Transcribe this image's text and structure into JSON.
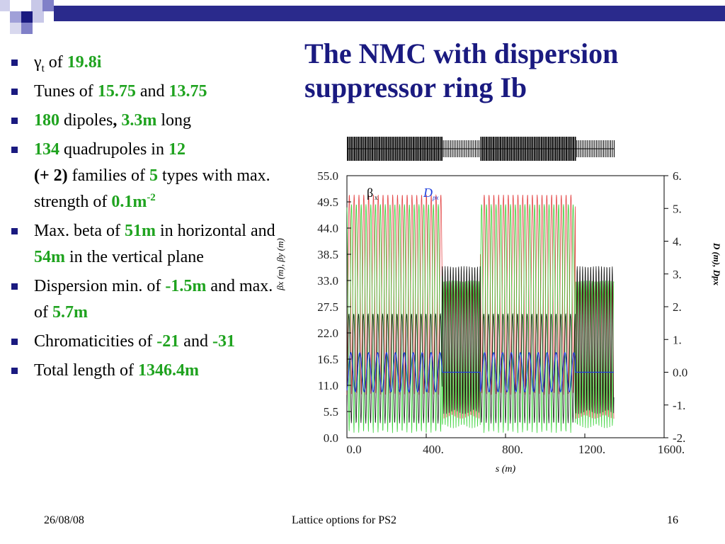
{
  "slide": {
    "title": "The NMC with dispersion suppressor ring Ib",
    "bullets": {
      "gamma": {
        "symbol": "γ",
        "sub": "t",
        "of": " of ",
        "value": "19.8i"
      },
      "tunes": {
        "prefix": "Tunes of ",
        "v1": "15.75",
        "and": " and ",
        "v2": "13.75"
      },
      "dipoles": {
        "count": "180",
        "mid": " dipoles",
        "comma": ",",
        "space": " ",
        "len": "3.3m",
        "suffix": " long"
      },
      "quads": {
        "count": "134",
        "t1": " quadrupoles in ",
        "fam": "12",
        "extra": "(+ 2)",
        "t2": " families of ",
        "types": "5",
        "t3": " types with max. strength of ",
        "strength": "0.1m",
        "exp": "-2"
      },
      "beta": {
        "t1": "Max. beta of ",
        "h": "51m",
        "t2": " in horizontal and ",
        "v": "54m",
        "t3": " in the vertical plane"
      },
      "dispersion": {
        "t1": "Dispersion min. of ",
        "min": "-1.5m",
        "t2": " and max. of ",
        "max": "5.7m"
      },
      "chroma": {
        "t1": "Chromaticities of ",
        "c1": "-21",
        "t2": " and ",
        "c2": "-31"
      },
      "length": {
        "t1": "Total length of ",
        "value": "1346.4m"
      }
    }
  },
  "footer": {
    "date": "26/08/08",
    "center": "Lattice options for PS2",
    "page": "16"
  },
  "chart_data": {
    "type": "line",
    "xlabel": "s (m)",
    "ylabel_left": "βx (m), βy (m)",
    "ylabel_right": "D (m), Dpx",
    "xlim": [
      0,
      1600
    ],
    "ylim_left": [
      0,
      55
    ],
    "ylim_right": [
      -2,
      6
    ],
    "x_ticks": [
      "0.0",
      "400.",
      "800.",
      "1200.",
      "1600."
    ],
    "y_ticks_left": [
      "0.0",
      "5.5",
      "11.0",
      "16.5",
      "22.0",
      "27.5",
      "33.0",
      "38.5",
      "44.0",
      "49.5",
      "55.0"
    ],
    "y_ticks_right": [
      "-2.",
      "-1.",
      "0.0",
      "1.",
      "2.",
      "3.",
      "4.",
      "5.",
      "6."
    ],
    "legend": [
      {
        "label": "β",
        "sub": "x"
      },
      {
        "label": "D",
        "sub": "px"
      }
    ],
    "total_length": 1346.4,
    "arcs": [
      {
        "start": 0,
        "end": 480
      },
      {
        "start": 673,
        "end": 1153
      }
    ],
    "series": [
      {
        "color": "#e03030",
        "arc_max": 51,
        "arc_min": 9,
        "straight_max": 33,
        "straight_min": 4
      },
      {
        "color": "#22cc22",
        "arc_max": 49,
        "arc_min": 1,
        "straight_max": 33,
        "straight_min": 2
      },
      {
        "color": "#000000",
        "arc_max": 26,
        "arc_min": 3,
        "straight_max": 36,
        "straight_min": 5
      },
      {
        "color": "#1f3fdd",
        "arc_max": 0.6,
        "arc_min": -0.6,
        "straight_max": 0.0,
        "straight_min": 0.0
      }
    ],
    "colors": {
      "title": "#1a1a80",
      "highlight": "#1fa31f",
      "bullet": "#1a1a80"
    }
  }
}
